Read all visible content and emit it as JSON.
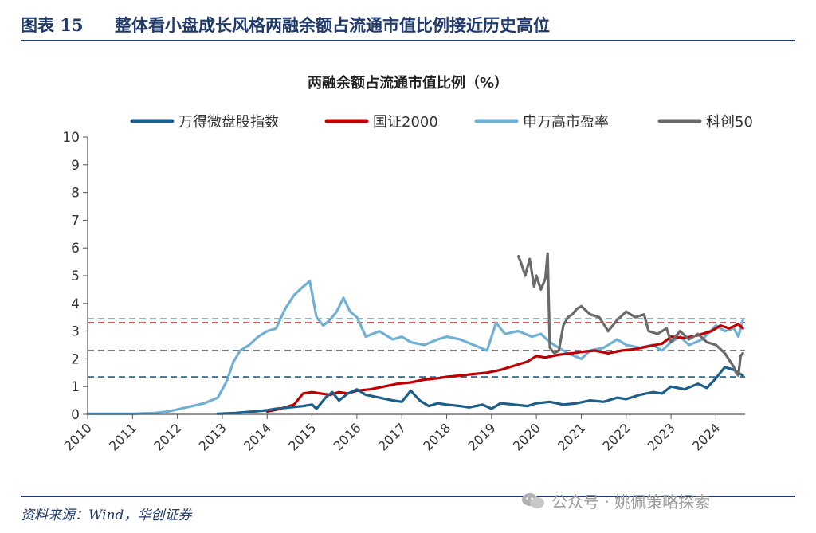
{
  "figure": {
    "number": "图表 15",
    "title": "整体看小盘成长风格两融余额占流通市值比例接近历史高位"
  },
  "source": "资料来源：Wind，华创证券",
  "watermark": "公众号 · 姚佩策略探索",
  "chart_data": {
    "type": "line",
    "title": "两融余额占流通市值比例（%）",
    "xlabel": "",
    "ylabel": "",
    "xlim": [
      2010.0,
      2024.65
    ],
    "ylim": [
      0,
      10
    ],
    "y_ticks": [
      0,
      1,
      2,
      3,
      4,
      5,
      6,
      7,
      8,
      9,
      10
    ],
    "x_ticks": [
      "2010",
      "2011",
      "2012",
      "2013",
      "2014",
      "2015",
      "2016",
      "2017",
      "2018",
      "2019",
      "2020",
      "2021",
      "2022",
      "2023",
      "2024"
    ],
    "grid": false,
    "legend_position": "top",
    "series": [
      {
        "name": "万得微盘股指数",
        "color": "#1c5f8a",
        "reference_line": 1.35,
        "x": [
          2012.9,
          2013.3,
          2013.7,
          2014.0,
          2014.2,
          2014.5,
          2014.8,
          2015.0,
          2015.1,
          2015.3,
          2015.45,
          2015.6,
          2015.8,
          2016.0,
          2016.2,
          2016.5,
          2016.8,
          2017.0,
          2017.2,
          2017.4,
          2017.6,
          2017.8,
          2018.0,
          2018.3,
          2018.5,
          2018.8,
          2019.0,
          2019.2,
          2019.5,
          2019.8,
          2020.0,
          2020.3,
          2020.6,
          2020.9,
          2021.2,
          2021.5,
          2021.8,
          2022.0,
          2022.3,
          2022.6,
          2022.8,
          2023.0,
          2023.3,
          2023.6,
          2023.8,
          2024.0,
          2024.1,
          2024.2,
          2024.4,
          2024.6
        ],
        "y": [
          0.02,
          0.05,
          0.1,
          0.15,
          0.2,
          0.25,
          0.3,
          0.35,
          0.2,
          0.6,
          0.8,
          0.5,
          0.75,
          0.9,
          0.7,
          0.6,
          0.5,
          0.45,
          0.85,
          0.5,
          0.3,
          0.4,
          0.35,
          0.3,
          0.25,
          0.35,
          0.2,
          0.4,
          0.35,
          0.3,
          0.4,
          0.45,
          0.35,
          0.4,
          0.5,
          0.45,
          0.6,
          0.55,
          0.7,
          0.8,
          0.75,
          1.0,
          0.9,
          1.1,
          0.95,
          1.3,
          1.5,
          1.7,
          1.6,
          1.4
        ]
      },
      {
        "name": "国证2000",
        "color": "#c00000",
        "reference_line": 3.3,
        "x": [
          2014.0,
          2014.3,
          2014.6,
          2014.8,
          2015.0,
          2015.2,
          2015.4,
          2015.6,
          2015.8,
          2016.0,
          2016.3,
          2016.6,
          2016.9,
          2017.2,
          2017.5,
          2017.8,
          2018.0,
          2018.3,
          2018.6,
          2018.9,
          2019.2,
          2019.5,
          2019.8,
          2020.0,
          2020.2,
          2020.5,
          2020.8,
          2021.0,
          2021.3,
          2021.6,
          2021.9,
          2022.2,
          2022.5,
          2022.8,
          2023.0,
          2023.3,
          2023.6,
          2023.9,
          2024.1,
          2024.3,
          2024.5,
          2024.6
        ],
        "y": [
          0.1,
          0.2,
          0.35,
          0.75,
          0.8,
          0.75,
          0.7,
          0.8,
          0.75,
          0.85,
          0.9,
          1.0,
          1.1,
          1.15,
          1.25,
          1.3,
          1.35,
          1.4,
          1.45,
          1.5,
          1.6,
          1.75,
          1.9,
          2.1,
          2.05,
          2.15,
          2.2,
          2.25,
          2.3,
          2.2,
          2.3,
          2.35,
          2.45,
          2.55,
          2.8,
          2.75,
          2.85,
          3.0,
          3.2,
          3.1,
          3.25,
          3.1
        ]
      },
      {
        "name": "申万高市盈率",
        "color": "#6fb0d4",
        "reference_line": 3.45,
        "x": [
          2010.0,
          2010.5,
          2011.0,
          2011.5,
          2011.8,
          2012.2,
          2012.6,
          2012.9,
          2013.1,
          2013.25,
          2013.4,
          2013.6,
          2013.8,
          2014.0,
          2014.2,
          2014.4,
          2014.6,
          2014.8,
          2014.95,
          2015.1,
          2015.25,
          2015.4,
          2015.55,
          2015.7,
          2015.85,
          2016.0,
          2016.2,
          2016.5,
          2016.8,
          2017.0,
          2017.2,
          2017.5,
          2017.8,
          2018.0,
          2018.3,
          2018.6,
          2018.9,
          2019.1,
          2019.3,
          2019.6,
          2019.9,
          2020.1,
          2020.3,
          2020.5,
          2020.7,
          2021.0,
          2021.2,
          2021.5,
          2021.8,
          2022.0,
          2022.3,
          2022.6,
          2022.8,
          2023.0,
          2023.2,
          2023.4,
          2023.7,
          2024.0,
          2024.2,
          2024.4,
          2024.5,
          2024.6
        ],
        "y": [
          0.02,
          0.02,
          0.02,
          0.05,
          0.1,
          0.25,
          0.4,
          0.6,
          1.2,
          1.9,
          2.3,
          2.5,
          2.8,
          3.0,
          3.1,
          3.8,
          4.3,
          4.6,
          4.8,
          3.5,
          3.2,
          3.4,
          3.7,
          4.2,
          3.7,
          3.5,
          2.8,
          3.0,
          2.7,
          2.8,
          2.6,
          2.5,
          2.7,
          2.8,
          2.7,
          2.5,
          2.3,
          3.3,
          2.9,
          3.0,
          2.8,
          2.9,
          2.6,
          2.4,
          2.2,
          2.0,
          2.3,
          2.4,
          2.7,
          2.5,
          2.4,
          2.5,
          2.3,
          2.6,
          2.8,
          2.5,
          2.7,
          3.2,
          3.0,
          3.1,
          2.8,
          3.4
        ]
      },
      {
        "name": "科创50",
        "color": "#6a6a6a",
        "reference_line": 2.3,
        "x": [
          2019.6,
          2019.65,
          2019.75,
          2019.85,
          2019.95,
          2020.0,
          2020.1,
          2020.2,
          2020.25,
          2020.3,
          2020.4,
          2020.5,
          2020.6,
          2020.7,
          2020.8,
          2020.9,
          2021.0,
          2021.2,
          2021.4,
          2021.6,
          2021.8,
          2022.0,
          2022.2,
          2022.4,
          2022.5,
          2022.7,
          2022.9,
          2023.0,
          2023.2,
          2023.4,
          2023.6,
          2023.8,
          2024.0,
          2024.2,
          2024.4,
          2024.45,
          2024.5,
          2024.55,
          2024.6
        ],
        "y": [
          5.7,
          5.5,
          5.0,
          5.6,
          4.6,
          5.0,
          4.5,
          4.9,
          5.8,
          2.4,
          2.2,
          2.3,
          3.2,
          3.5,
          3.6,
          3.8,
          3.9,
          3.6,
          3.5,
          3.0,
          3.4,
          3.7,
          3.5,
          3.6,
          3.0,
          2.9,
          3.1,
          2.6,
          3.0,
          2.7,
          2.9,
          2.6,
          2.5,
          2.2,
          1.7,
          1.5,
          1.4,
          2.1,
          2.2
        ]
      }
    ]
  }
}
